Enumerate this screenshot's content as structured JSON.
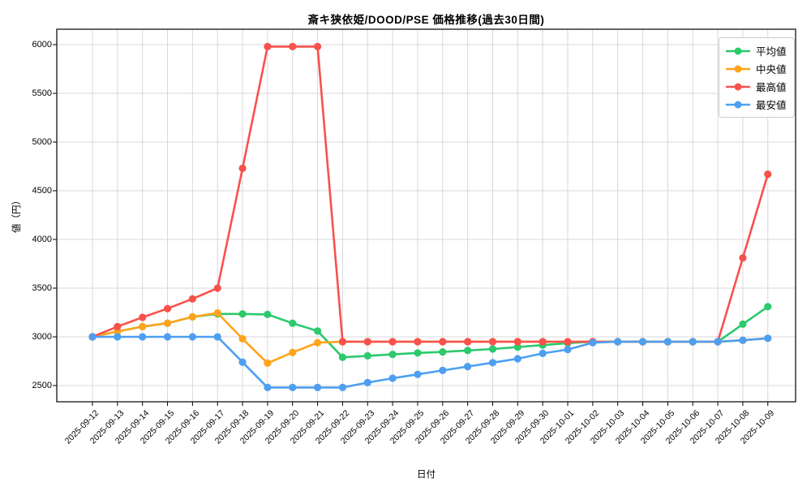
{
  "chart": {
    "title": "斎キ狭依姫/DOOD/PSE 価格推移(過去30日間)",
    "xlabel": "日付",
    "ylabel": "値（円）"
  },
  "legend": {
    "items": [
      {
        "label": "平均値",
        "color": "#2cc96d"
      },
      {
        "label": "中央値",
        "color": "#ffa41b"
      },
      {
        "label": "最高値",
        "color": "#f8514d"
      },
      {
        "label": "最安値",
        "color": "#4d9ff0"
      }
    ]
  },
  "chart_data": {
    "type": "line",
    "title": "斎キ狭依姫/DOOD/PSE 価格推移(過去30日間)",
    "xlabel": "日付",
    "ylabel": "値（円）",
    "grid": true,
    "legend_position": "upper right",
    "ylim": [
      2330,
      6160
    ],
    "yticks": [
      2500,
      3000,
      3500,
      4000,
      4500,
      5000,
      5500,
      6000
    ],
    "x": [
      "2025-09-12",
      "2025-09-13",
      "2025-09-14",
      "2025-09-15",
      "2025-09-16",
      "2025-09-17",
      "2025-09-18",
      "2025-09-19",
      "2025-09-20",
      "2025-09-21",
      "2025-09-22",
      "2025-09-23",
      "2025-09-24",
      "2025-09-25",
      "2025-09-26",
      "2025-09-27",
      "2025-09-28",
      "2025-09-29",
      "2025-09-30",
      "2025-10-01",
      "2025-10-02",
      "2025-10-03",
      "2025-10-04",
      "2025-10-05",
      "2025-10-06",
      "2025-10-07",
      "2025-10-08",
      "2025-10-09"
    ],
    "series": [
      {
        "name": "平均値",
        "color": "#2cc96d",
        "values": [
          3000,
          3055,
          3105,
          3140,
          3205,
          3235,
          3235,
          3230,
          3140,
          3060,
          2790,
          2805,
          2820,
          2835,
          2845,
          2860,
          2875,
          2895,
          2915,
          2935,
          2950,
          2950,
          2950,
          2950,
          2950,
          2950,
          3130,
          3310
        ]
      },
      {
        "name": "中央値",
        "color": "#ffa41b",
        "values": [
          3000,
          3055,
          3105,
          3140,
          3205,
          3245,
          2980,
          2730,
          2840,
          2940,
          2950,
          2950,
          2950,
          2950,
          2950,
          2950,
          2950,
          2950,
          2950,
          2950,
          2950,
          2950,
          2950,
          2950,
          2950,
          2950,
          2965,
          2985
        ]
      },
      {
        "name": "最高値",
        "color": "#f8514d",
        "values": [
          3000,
          3105,
          3200,
          3290,
          3390,
          3500,
          4730,
          5980,
          5980,
          5980,
          2950,
          2950,
          2950,
          2950,
          2950,
          2950,
          2950,
          2950,
          2950,
          2950,
          2950,
          2950,
          2950,
          2950,
          2950,
          2950,
          3810,
          4670
        ]
      },
      {
        "name": "最安値",
        "color": "#4d9ff0",
        "values": [
          3000,
          3000,
          3000,
          3000,
          3000,
          3000,
          2740,
          2480,
          2480,
          2480,
          2480,
          2530,
          2575,
          2615,
          2655,
          2695,
          2735,
          2775,
          2830,
          2870,
          2940,
          2950,
          2950,
          2950,
          2950,
          2950,
          2965,
          2985
        ]
      }
    ]
  }
}
